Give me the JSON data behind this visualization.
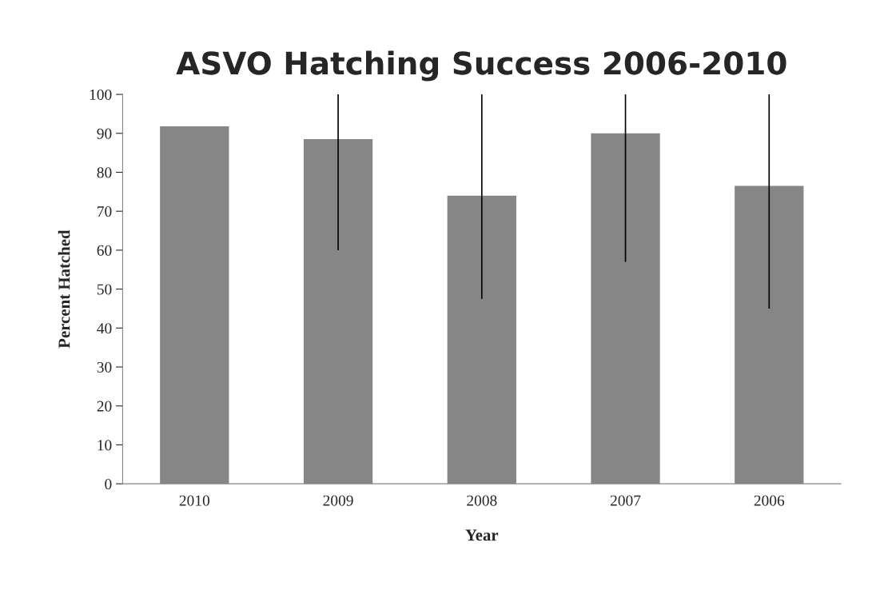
{
  "chart_data": {
    "type": "bar",
    "title": "ASVO Hatching Success 2006-2010",
    "xlabel": "Year",
    "ylabel": "Percent Hatched",
    "categories": [
      "2010",
      "2009",
      "2008",
      "2007",
      "2006"
    ],
    "values": [
      91.8,
      88.5,
      74,
      90,
      76.5
    ],
    "errors": [
      null,
      [
        60,
        100
      ],
      [
        47.5,
        100
      ],
      [
        57,
        100
      ],
      [
        45,
        100
      ]
    ],
    "color": "#868686",
    "ylim": [
      0,
      100
    ],
    "yticks": [
      0,
      10,
      20,
      30,
      40,
      50,
      60,
      70,
      80,
      90,
      100
    ],
    "grid": false,
    "legend": false
  }
}
